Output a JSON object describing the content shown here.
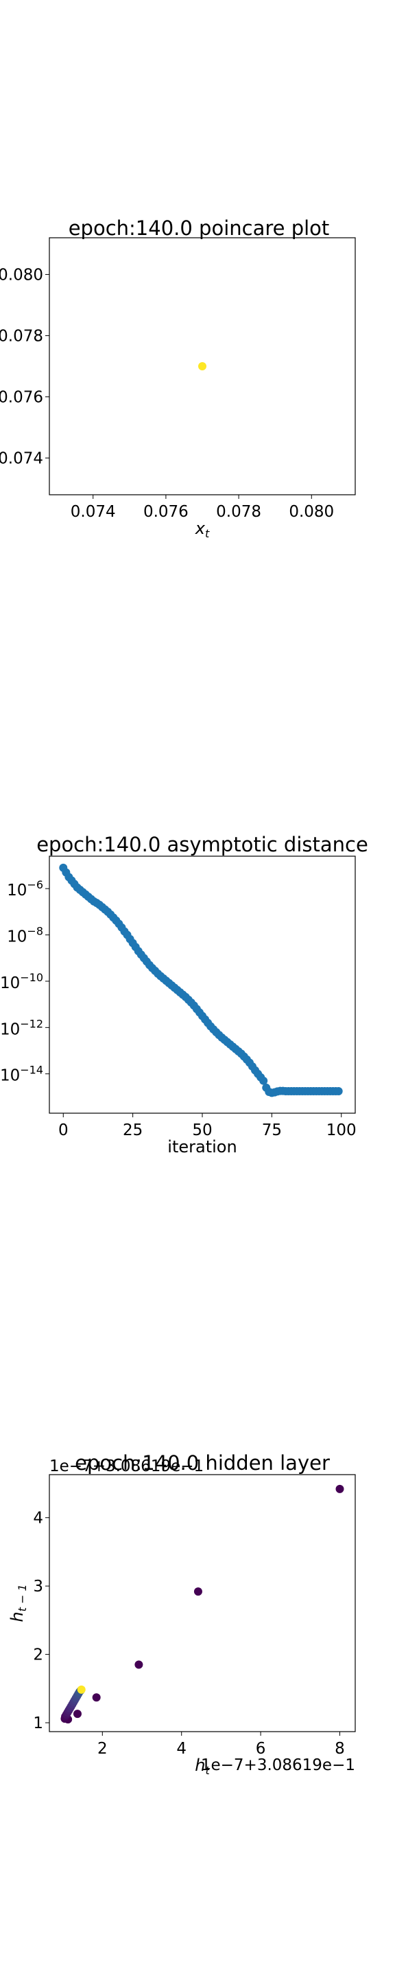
{
  "chart_data": [
    {
      "type": "scatter",
      "title": "epoch:140.0 poincare plot",
      "xlabel": "x_t",
      "ylabel": "",
      "xlim": [
        0.0728,
        0.0812
      ],
      "ylim": [
        0.0728,
        0.0812
      ],
      "x_ticks": [
        0.074,
        0.076,
        0.078,
        0.08
      ],
      "x_tick_labels": [
        "0.074",
        "0.076",
        "0.078",
        "0.080"
      ],
      "y_ticks": [
        0.074,
        0.076,
        0.078,
        0.08
      ],
      "y_tick_labels": [
        "0.074",
        "0.076",
        "0.078",
        "0.080"
      ],
      "points": [
        {
          "x": 0.077,
          "y": 0.077
        }
      ],
      "point_color": "#fde725",
      "grid": false
    },
    {
      "type": "scatter",
      "title": "epoch:140.0 asymptotic distance",
      "xlabel": "iteration",
      "ylabel": "",
      "yscale": "log",
      "xlim": [
        -5,
        105
      ],
      "ylim_log10": [
        -15.7,
        -4.6
      ],
      "x_ticks": [
        0,
        25,
        50,
        75,
        100
      ],
      "x_tick_labels": [
        "0",
        "25",
        "50",
        "75",
        "100"
      ],
      "y_ticks_log10": [
        -6,
        -8,
        -10,
        -12,
        -14
      ],
      "y_tick_labels": [
        "10^{-6}",
        "10^{-8}",
        "10^{-10}",
        "10^{-12}",
        "10^{-14}"
      ],
      "series": [
        {
          "marker_color": "#1f77b4",
          "x": [
            0,
            1,
            2,
            3,
            4,
            5,
            6,
            7,
            8,
            9,
            10,
            11,
            12,
            13,
            14,
            15,
            16,
            17,
            18,
            19,
            20,
            21,
            22,
            23,
            24,
            25,
            26,
            27,
            28,
            29,
            30,
            31,
            32,
            33,
            34,
            35,
            36,
            37,
            38,
            39,
            40,
            41,
            42,
            43,
            44,
            45,
            46,
            47,
            48,
            49,
            50,
            51,
            52,
            53,
            54,
            55,
            56,
            57,
            58,
            59,
            60,
            61,
            62,
            63,
            64,
            65,
            66,
            67,
            68,
            69,
            70,
            71,
            72,
            73,
            74,
            75,
            76,
            77,
            78,
            79,
            80,
            81,
            82,
            83,
            84,
            85,
            86,
            87,
            88,
            89,
            90,
            91,
            92,
            93,
            94,
            95,
            96,
            97,
            98,
            99
          ],
          "y_log10": [
            -5.1,
            -5.3,
            -5.5,
            -5.65,
            -5.8,
            -5.95,
            -6.05,
            -6.15,
            -6.25,
            -6.35,
            -6.45,
            -6.55,
            -6.62,
            -6.7,
            -6.8,
            -6.9,
            -7.0,
            -7.12,
            -7.25,
            -7.38,
            -7.52,
            -7.68,
            -7.85,
            -8.0,
            -8.18,
            -8.35,
            -8.52,
            -8.7,
            -8.85,
            -9.0,
            -9.15,
            -9.3,
            -9.43,
            -9.55,
            -9.67,
            -9.78,
            -9.88,
            -9.98,
            -10.08,
            -10.18,
            -10.28,
            -10.38,
            -10.48,
            -10.58,
            -10.68,
            -10.8,
            -10.92,
            -11.05,
            -11.2,
            -11.35,
            -11.5,
            -11.65,
            -11.8,
            -11.95,
            -12.08,
            -12.2,
            -12.32,
            -12.43,
            -12.53,
            -12.63,
            -12.73,
            -12.83,
            -12.93,
            -13.03,
            -13.13,
            -13.25,
            -13.38,
            -13.52,
            -13.68,
            -13.85,
            -14.0,
            -14.15,
            -14.3,
            -14.6,
            -14.78,
            -14.82,
            -14.8,
            -14.76,
            -14.74,
            -14.74,
            -14.75,
            -14.75,
            -14.75,
            -14.75,
            -14.75,
            -14.75,
            -14.75,
            -14.75,
            -14.75,
            -14.75,
            -14.75,
            -14.75,
            -14.75,
            -14.75,
            -14.75,
            -14.75,
            -14.75,
            -14.75,
            -14.75,
            -14.75
          ]
        }
      ],
      "grid": false
    },
    {
      "type": "scatter",
      "title": "epoch:140.0 hidden layer",
      "xlabel": "h_t",
      "ylabel": "h_{t-1}",
      "x_offset_text": "1e−7+3.08619e−1",
      "y_offset_text": "1e−7+3.08619e−1",
      "xlim": [
        0.66,
        8.39
      ],
      "ylim": [
        0.87,
        4.63
      ],
      "x_ticks": [
        2,
        4,
        6,
        8
      ],
      "x_tick_labels": [
        "2",
        "4",
        "6",
        "8"
      ],
      "y_ticks": [
        1,
        2,
        3,
        4
      ],
      "y_tick_labels": [
        "1",
        "2",
        "3",
        "4"
      ],
      "points": [
        {
          "x": 8.0,
          "y": 4.42,
          "c": "#440154"
        },
        {
          "x": 4.42,
          "y": 2.92,
          "c": "#440154"
        },
        {
          "x": 2.92,
          "y": 1.85,
          "c": "#440154"
        },
        {
          "x": 1.85,
          "y": 1.37,
          "c": "#440154"
        },
        {
          "x": 1.37,
          "y": 1.13,
          "c": "#440154"
        },
        {
          "x": 1.13,
          "y": 1.05,
          "c": "#440154"
        },
        {
          "x": 1.05,
          "y": 1.06,
          "c": "#440154"
        },
        {
          "x": 1.06,
          "y": 1.09,
          "c": "#46085c"
        },
        {
          "x": 1.09,
          "y": 1.12,
          "c": "#471063"
        },
        {
          "x": 1.12,
          "y": 1.15,
          "c": "#481769"
        },
        {
          "x": 1.15,
          "y": 1.18,
          "c": "#481d6f"
        },
        {
          "x": 1.18,
          "y": 1.21,
          "c": "#482475"
        },
        {
          "x": 1.21,
          "y": 1.24,
          "c": "#472a7a"
        },
        {
          "x": 1.24,
          "y": 1.27,
          "c": "#46307e"
        },
        {
          "x": 1.27,
          "y": 1.3,
          "c": "#453781"
        },
        {
          "x": 1.3,
          "y": 1.33,
          "c": "#433d84"
        },
        {
          "x": 1.33,
          "y": 1.36,
          "c": "#414487"
        },
        {
          "x": 1.36,
          "y": 1.39,
          "c": "#3f4a8a"
        },
        {
          "x": 1.39,
          "y": 1.42,
          "c": "#3c508b"
        },
        {
          "x": 1.42,
          "y": 1.45,
          "c": "#39568c"
        },
        {
          "x": 1.45,
          "y": 1.47,
          "c": "#365c8d"
        },
        {
          "x": 1.47,
          "y": 1.485,
          "c": "#fde725"
        }
      ],
      "grid": false
    }
  ]
}
